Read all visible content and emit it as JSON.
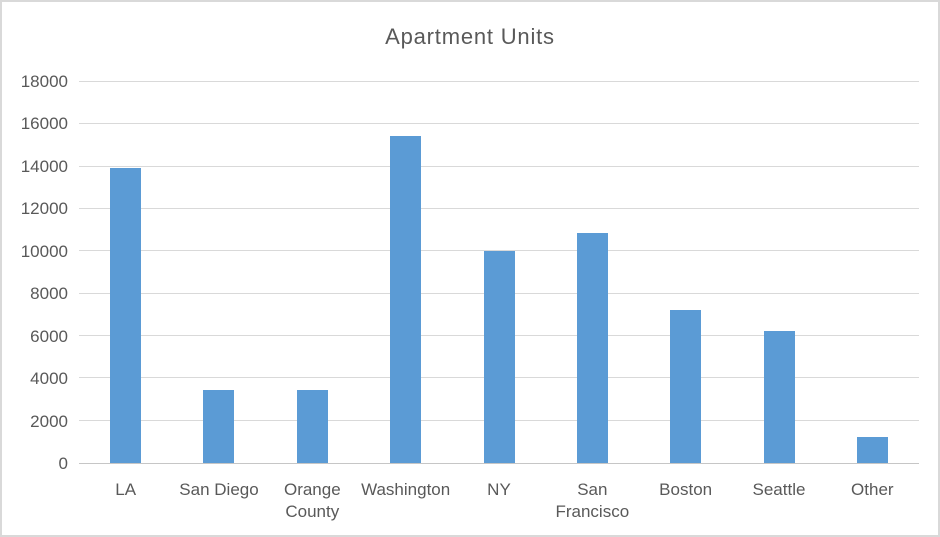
{
  "chart_data": {
    "type": "bar",
    "title": "Apartment Units",
    "categories": [
      "LA",
      "San Diego",
      "Orange County",
      "Washington",
      "NY",
      "San Francisco",
      "Boston",
      "Seattle",
      "Other"
    ],
    "values": [
      13950,
      3450,
      3450,
      15450,
      10000,
      10850,
      7250,
      6250,
      1250
    ],
    "xlabel": "",
    "ylabel": "",
    "ylim": [
      0,
      18000
    ],
    "ytick_step": 2000,
    "ytick_labels": [
      "0",
      "2000",
      "4000",
      "6000",
      "8000",
      "10000",
      "12000",
      "14000",
      "16000",
      "18000"
    ],
    "grid": "horizontal",
    "legend": "none",
    "bar_color": "#5B9BD5",
    "gridline_color": "#D9D9D9",
    "axis_line_color": "#C6C6C6",
    "text_color": "#595959",
    "background_color": "#FFFFFF",
    "border_color": "#D9D9D9"
  }
}
